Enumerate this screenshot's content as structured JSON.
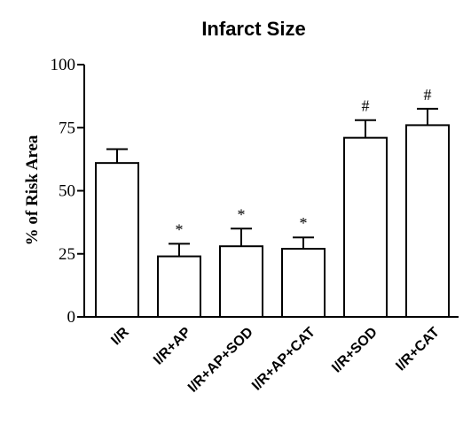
{
  "chart_data": {
    "type": "bar",
    "title": "Infarct Size",
    "ylabel": "% of Risk Area",
    "xlabel": "",
    "ylim": [
      0,
      100
    ],
    "yticks": [
      0,
      25,
      50,
      75,
      100
    ],
    "ytick_labels": [
      "0",
      "25",
      "50",
      "75",
      "100"
    ],
    "categories": [
      "I/R",
      "I/R+AP",
      "I/R+AP+SOD",
      "I/R+AP+CAT",
      "I/R+SOD",
      "I/R+CAT"
    ],
    "values": [
      61,
      24,
      28,
      27,
      71,
      76
    ],
    "errors": [
      5.5,
      5,
      7,
      4.5,
      7,
      6.5
    ],
    "annotations": [
      "",
      "*",
      "*",
      "*",
      "#",
      "#"
    ],
    "grid": false,
    "legend": "none",
    "bar_color": "#ffffff",
    "edge_color": "#000000"
  }
}
